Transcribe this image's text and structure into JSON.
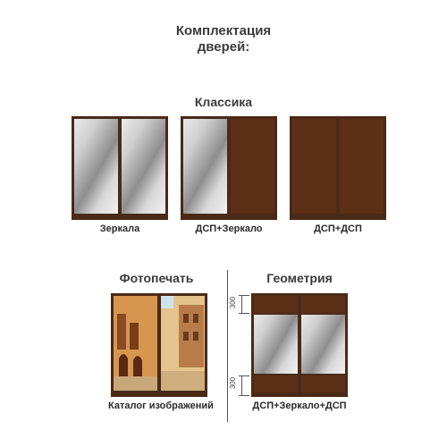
{
  "header": {
    "title_line1": "Комплектация",
    "title_line2": "дверей:"
  },
  "sections": {
    "classic": "Классика",
    "photo": "Фотопечать",
    "geometry": "Геометрия"
  },
  "captions": {
    "mirrors": "Зеркала",
    "dsp_mirror": "ДСП+Зеркало",
    "dsp_dsp": "ДСП+ДСП",
    "catalog": "Каталог изображений",
    "dsp_mirror_dsp": "ДСП+Зеркало+ДСП"
  },
  "dimensions": {
    "top": "300",
    "bottom": "300"
  },
  "colors": {
    "frame": "#4a2a17",
    "dsp": "#5c2f17",
    "mirror": "#bfbfbf"
  }
}
